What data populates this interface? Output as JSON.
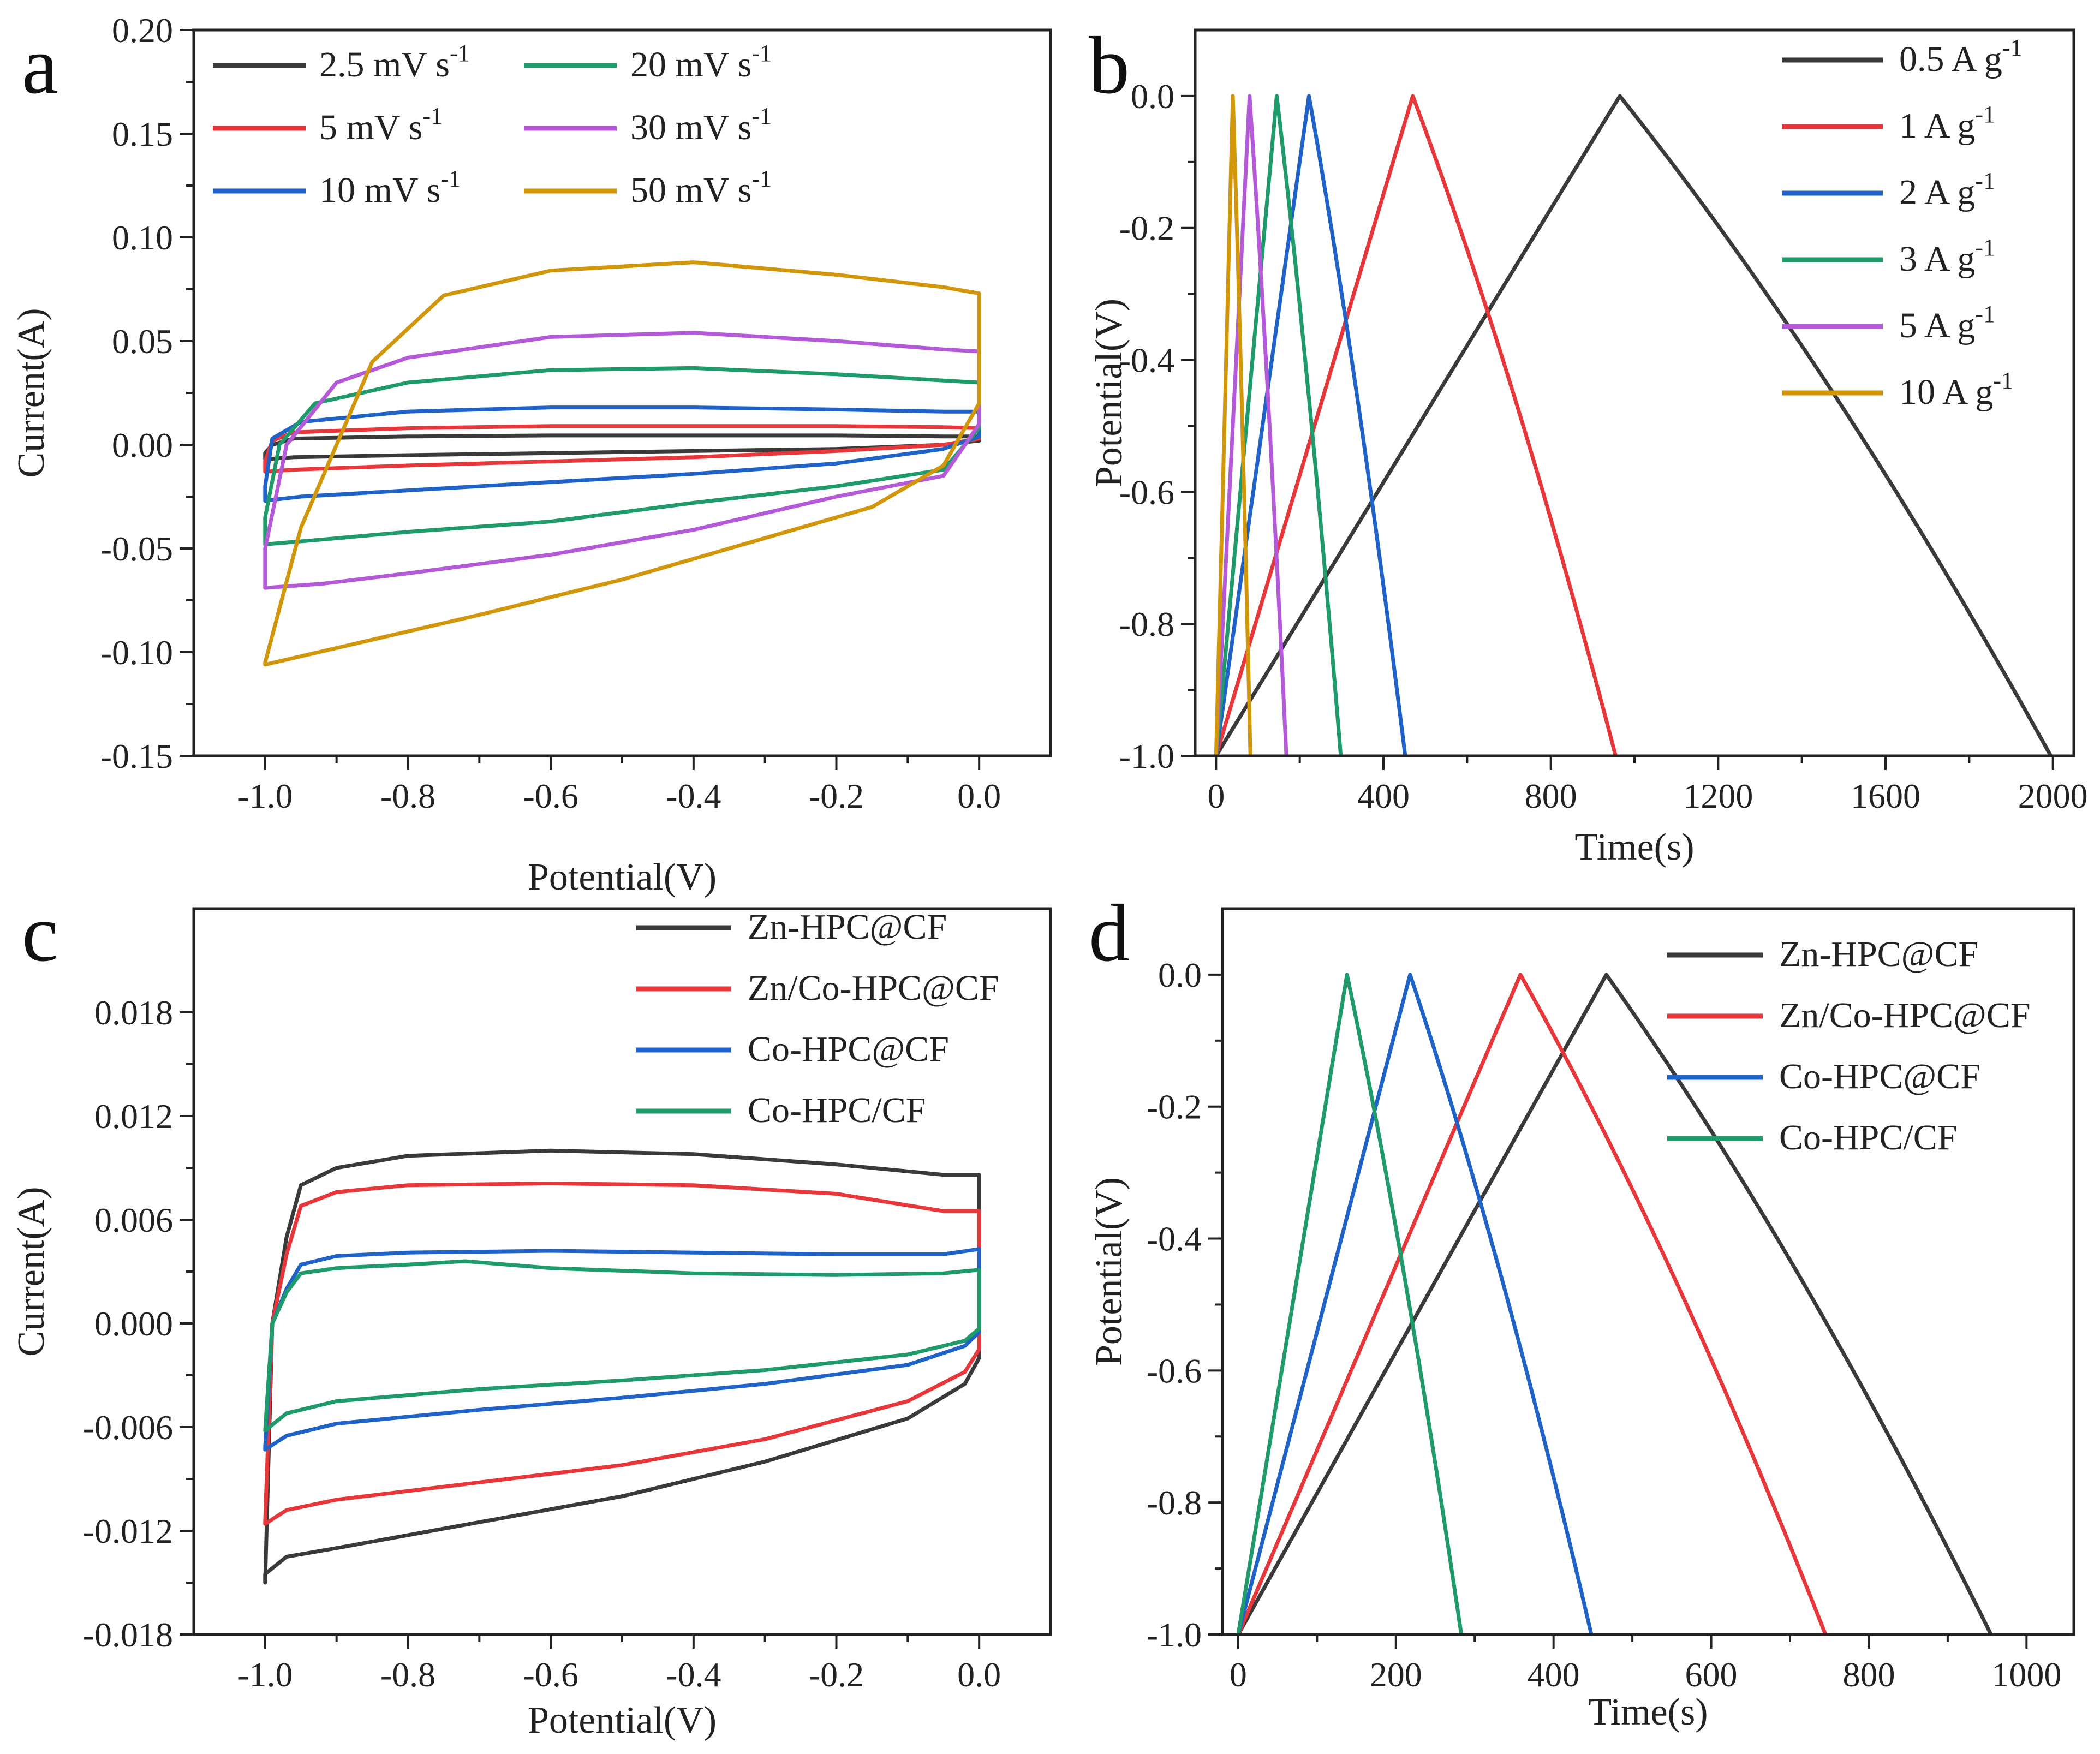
{
  "chart_data": [
    {
      "panel": "a",
      "type": "line",
      "subtype": "cyclic-voltammetry",
      "xlabel": "Potential(V)",
      "ylabel": "Current(A)",
      "xlim": [
        -1.1,
        0.1
      ],
      "ylim": [
        -0.15,
        0.2
      ],
      "xticks": [
        -1.0,
        -0.8,
        -0.6,
        -0.4,
        -0.2,
        0.0
      ],
      "xtick_labels": [
        "-1.0",
        "-0.8",
        "-0.6",
        "-0.4",
        "-0.2",
        "0.0"
      ],
      "yticks": [
        -0.15,
        -0.1,
        -0.05,
        0.0,
        0.05,
        0.1,
        0.15,
        0.2
      ],
      "ytick_labels": [
        "-0.15",
        "-0.10",
        "-0.05",
        "0.00",
        "0.05",
        "0.10",
        "0.15",
        "0.20"
      ],
      "legend_position": "top-left",
      "legend_columns": 2,
      "series": [
        {
          "name": "2.5 mV s",
          "sup": "-1",
          "color": "#3a3a3a",
          "x": [
            -1.0,
            -0.99,
            -0.96,
            -0.8,
            -0.6,
            -0.4,
            -0.2,
            -0.05,
            0.0,
            0.0,
            -0.05,
            -0.2,
            -0.4,
            -0.6,
            -0.8,
            -0.96,
            -1.0,
            -1.0
          ],
          "y": [
            -0.004,
            0.0,
            0.003,
            0.004,
            0.0045,
            0.0045,
            0.0045,
            0.004,
            0.004,
            0.002,
            0.0,
            -0.002,
            -0.003,
            -0.004,
            -0.005,
            -0.006,
            -0.007,
            -0.004
          ]
        },
        {
          "name": "5 mV s",
          "sup": "-1",
          "color": "#e8373a",
          "x": [
            -1.0,
            -0.99,
            -0.96,
            -0.8,
            -0.6,
            -0.4,
            -0.2,
            -0.05,
            0.0,
            0.0,
            -0.05,
            -0.2,
            -0.4,
            -0.6,
            -0.8,
            -0.96,
            -1.0,
            -1.0
          ],
          "y": [
            -0.008,
            0.002,
            0.006,
            0.008,
            0.009,
            0.009,
            0.009,
            0.0085,
            0.008,
            0.003,
            0.0,
            -0.003,
            -0.006,
            -0.008,
            -0.01,
            -0.012,
            -0.013,
            -0.008
          ]
        },
        {
          "name": "10 mV s",
          "sup": "-1",
          "color": "#2063c8",
          "x": [
            -1.0,
            -0.99,
            -0.95,
            -0.8,
            -0.6,
            -0.4,
            -0.2,
            -0.05,
            0.0,
            0.0,
            -0.05,
            -0.2,
            -0.4,
            -0.6,
            -0.8,
            -0.95,
            -1.0,
            -1.0
          ],
          "y": [
            -0.02,
            0.003,
            0.011,
            0.016,
            0.018,
            0.018,
            0.017,
            0.016,
            0.016,
            0.004,
            -0.002,
            -0.009,
            -0.014,
            -0.018,
            -0.022,
            -0.025,
            -0.027,
            -0.02
          ]
        },
        {
          "name": "20 mV s",
          "sup": "-1",
          "color": "#1f9a6a",
          "x": [
            -1.0,
            -0.98,
            -0.93,
            -0.8,
            -0.6,
            -0.4,
            -0.2,
            -0.05,
            0.0,
            0.0,
            -0.05,
            -0.2,
            -0.4,
            -0.6,
            -0.8,
            -0.93,
            -1.0,
            -1.0
          ],
          "y": [
            -0.035,
            0.0,
            0.02,
            0.03,
            0.036,
            0.037,
            0.034,
            0.031,
            0.03,
            0.008,
            -0.012,
            -0.02,
            -0.028,
            -0.037,
            -0.042,
            -0.046,
            -0.048,
            -0.035
          ]
        },
        {
          "name": "30 mV s",
          "sup": "-1",
          "color": "#b45ad8",
          "x": [
            -1.0,
            -0.97,
            -0.9,
            -0.8,
            -0.6,
            -0.4,
            -0.2,
            -0.05,
            0.0,
            0.0,
            -0.05,
            -0.2,
            -0.4,
            -0.6,
            -0.8,
            -0.92,
            -1.0,
            -1.0
          ],
          "y": [
            -0.05,
            0.0,
            0.03,
            0.042,
            0.052,
            0.054,
            0.05,
            0.046,
            0.045,
            0.01,
            -0.015,
            -0.025,
            -0.041,
            -0.053,
            -0.062,
            -0.067,
            -0.069,
            -0.05
          ]
        },
        {
          "name": "50 mV s",
          "sup": "-1",
          "color": "#d1960a",
          "x": [
            -1.0,
            -0.95,
            -0.85,
            -0.75,
            -0.6,
            -0.4,
            -0.2,
            -0.05,
            0.0,
            0.0,
            -0.05,
            -0.15,
            -0.3,
            -0.5,
            -0.7,
            -0.9,
            -1.0,
            -1.0
          ],
          "y": [
            -0.105,
            -0.04,
            0.04,
            0.072,
            0.084,
            0.088,
            0.082,
            0.076,
            0.073,
            0.02,
            -0.01,
            -0.03,
            -0.045,
            -0.065,
            -0.082,
            -0.098,
            -0.106,
            -0.105
          ]
        }
      ]
    },
    {
      "panel": "b",
      "type": "line",
      "subtype": "galvanostatic-charge-discharge",
      "xlabel": "Time(s)",
      "ylabel": "Potential(V)",
      "xlim": [
        -50,
        2050
      ],
      "ylim": [
        -1.0,
        0.1
      ],
      "xticks": [
        0,
        400,
        800,
        1200,
        1600,
        2000
      ],
      "xtick_labels": [
        "0",
        "400",
        "800",
        "1200",
        "1600",
        "2000"
      ],
      "yticks": [
        -1.0,
        -0.8,
        -0.6,
        -0.4,
        -0.2,
        0.0
      ],
      "ytick_labels": [
        "-1.0",
        "-0.8",
        "-0.6",
        "-0.4",
        "-0.2",
        "0.0"
      ],
      "legend_position": "top-right",
      "series": [
        {
          "name": "0.5 A g",
          "sup": "-1",
          "color": "#3a3a3a",
          "charge_end": 965,
          "discharge_end": 1995
        },
        {
          "name": "1 A g",
          "sup": "-1",
          "color": "#e8373a",
          "charge_end": 470,
          "discharge_end": 955
        },
        {
          "name": "2 A g",
          "sup": "-1",
          "color": "#2063c8",
          "charge_end": 222,
          "discharge_end": 452
        },
        {
          "name": "3 A g",
          "sup": "-1",
          "color": "#1f9a6a",
          "charge_end": 145,
          "discharge_end": 298
        },
        {
          "name": "5 A g",
          "sup": "-1",
          "color": "#b45ad8",
          "charge_end": 80,
          "discharge_end": 168
        },
        {
          "name": "10 A g",
          "sup": "-1",
          "color": "#d1960a",
          "charge_end": 40,
          "discharge_end": 82
        }
      ]
    },
    {
      "panel": "c",
      "type": "line",
      "subtype": "cyclic-voltammetry",
      "xlabel": "Potential(V)",
      "ylabel": "Current(A)",
      "xlim": [
        -1.1,
        0.1
      ],
      "ylim": [
        -0.018,
        0.024
      ],
      "xticks": [
        -1.0,
        -0.8,
        -0.6,
        -0.4,
        -0.2,
        0.0
      ],
      "xtick_labels": [
        "-1.0",
        "-0.8",
        "-0.6",
        "-0.4",
        "-0.2",
        "0.0"
      ],
      "yticks": [
        -0.018,
        -0.012,
        -0.006,
        0.0,
        0.006,
        0.012,
        0.018
      ],
      "ytick_labels": [
        "-0.018",
        "-0.012",
        "-0.006",
        "0.000",
        "0.006",
        "0.012",
        "0.018"
      ],
      "legend_position": "top-right",
      "series": [
        {
          "name": "Zn-HPC@CF",
          "color": "#3a3a3a",
          "x": [
            -1.0,
            -0.99,
            -0.97,
            -0.95,
            -0.9,
            -0.8,
            -0.6,
            -0.4,
            -0.2,
            -0.05,
            0.0,
            0.0,
            -0.02,
            -0.1,
            -0.3,
            -0.5,
            -0.7,
            -0.9,
            -0.97,
            -1.0,
            -1.0
          ],
          "y": [
            -0.015,
            0.0,
            0.005,
            0.008,
            0.009,
            0.0097,
            0.01,
            0.0098,
            0.0092,
            0.0086,
            0.0086,
            -0.002,
            -0.0035,
            -0.0055,
            -0.008,
            -0.01,
            -0.0115,
            -0.013,
            -0.0135,
            -0.0145,
            -0.015
          ]
        },
        {
          "name": "Zn/Co-HPC@CF",
          "color": "#e8373a",
          "x": [
            -1.0,
            -0.99,
            -0.97,
            -0.95,
            -0.9,
            -0.8,
            -0.6,
            -0.4,
            -0.2,
            -0.05,
            0.0,
            0.0,
            -0.02,
            -0.1,
            -0.3,
            -0.5,
            -0.7,
            -0.9,
            -0.97,
            -1.0,
            -1.0
          ],
          "y": [
            -0.0115,
            0.0,
            0.004,
            0.0068,
            0.0076,
            0.008,
            0.0081,
            0.008,
            0.0075,
            0.0065,
            0.0065,
            -0.0015,
            -0.0028,
            -0.0045,
            -0.0067,
            -0.0082,
            -0.0092,
            -0.0102,
            -0.0108,
            -0.0116,
            -0.0115
          ]
        },
        {
          "name": "Co-HPC@CF",
          "color": "#2063c8",
          "x": [
            -1.0,
            -0.99,
            -0.97,
            -0.95,
            -0.9,
            -0.8,
            -0.6,
            -0.4,
            -0.2,
            -0.05,
            0.0,
            0.0,
            -0.02,
            -0.1,
            -0.3,
            -0.5,
            -0.7,
            -0.9,
            -0.97,
            -1.0,
            -1.0
          ],
          "y": [
            -0.0072,
            0.0,
            0.002,
            0.0034,
            0.0039,
            0.0041,
            0.0042,
            0.0041,
            0.004,
            0.004,
            0.0043,
            -0.0005,
            -0.0013,
            -0.0024,
            -0.0035,
            -0.0043,
            -0.005,
            -0.0058,
            -0.0065,
            -0.0073,
            -0.0072
          ]
        },
        {
          "name": "Co-HPC/CF",
          "color": "#1f9a6a",
          "x": [
            -1.0,
            -0.99,
            -0.97,
            -0.95,
            -0.9,
            -0.8,
            -0.72,
            -0.6,
            -0.4,
            -0.2,
            -0.05,
            0.0,
            0.0,
            -0.02,
            -0.1,
            -0.3,
            -0.5,
            -0.7,
            -0.9,
            -0.97,
            -1.0,
            -1.0
          ],
          "y": [
            -0.0062,
            0.0,
            0.0018,
            0.0029,
            0.0032,
            0.0034,
            0.0036,
            0.0032,
            0.0029,
            0.0028,
            0.0029,
            0.0031,
            -0.0003,
            -0.001,
            -0.0018,
            -0.0027,
            -0.0033,
            -0.0038,
            -0.0045,
            -0.0052,
            -0.0062,
            -0.0062
          ]
        }
      ]
    },
    {
      "panel": "d",
      "type": "line",
      "subtype": "galvanostatic-charge-discharge",
      "xlabel": "Time(s)",
      "ylabel": "Potential(V)",
      "xlim": [
        -20,
        1060
      ],
      "ylim": [
        -1.0,
        0.1
      ],
      "xticks": [
        0,
        200,
        400,
        600,
        800,
        1000
      ],
      "xtick_labels": [
        "0",
        "200",
        "400",
        "600",
        "800",
        "1000"
      ],
      "yticks": [
        -1.0,
        -0.8,
        -0.6,
        -0.4,
        -0.2,
        0.0
      ],
      "ytick_labels": [
        "-1.0",
        "-0.8",
        "-0.6",
        "-0.4",
        "-0.2",
        "0.0"
      ],
      "legend_position": "top-right",
      "series": [
        {
          "name": "Zn-HPC@CF",
          "color": "#3a3a3a",
          "charge_end": 467,
          "discharge_end": 955
        },
        {
          "name": "Zn/Co-HPC@CF",
          "color": "#e8373a",
          "charge_end": 358,
          "discharge_end": 745
        },
        {
          "name": "Co-HPC@CF",
          "color": "#2063c8",
          "charge_end": 218,
          "discharge_end": 448
        },
        {
          "name": "Co-HPC/CF",
          "color": "#1f9a6a",
          "charge_end": 138,
          "discharge_end": 283
        }
      ]
    }
  ]
}
